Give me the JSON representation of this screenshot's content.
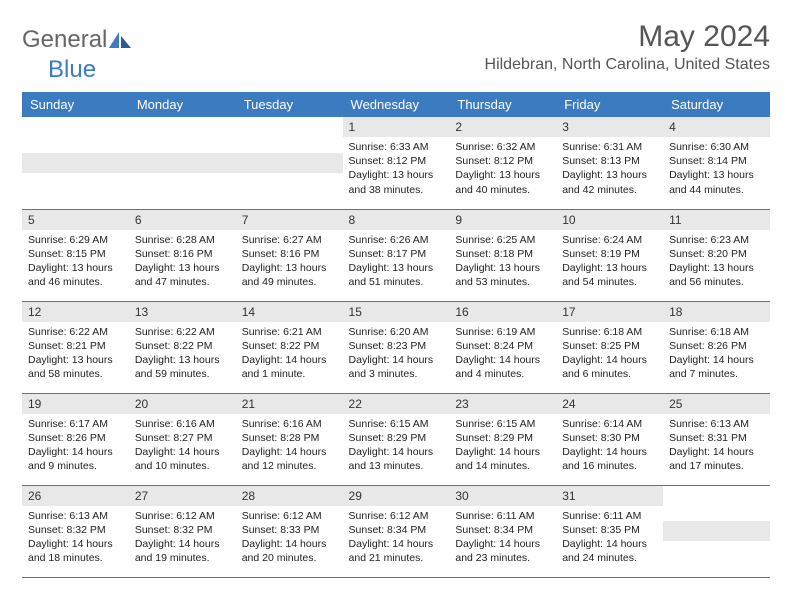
{
  "logo": {
    "part1": "General",
    "part2": "Blue"
  },
  "title": "May 2024",
  "location": "Hildebran, North Carolina, United States",
  "colors": {
    "header_bg": "#3b7bbf",
    "header_text": "#ffffff",
    "daynum_bg": "#e8e8e8",
    "border": "#3b7bbf",
    "logo_gray": "#666666",
    "logo_blue": "#3b7bbf"
  },
  "days_of_week": [
    "Sunday",
    "Monday",
    "Tuesday",
    "Wednesday",
    "Thursday",
    "Friday",
    "Saturday"
  ],
  "weeks": [
    [
      null,
      null,
      null,
      {
        "n": "1",
        "sr": "6:33 AM",
        "ss": "8:12 PM",
        "dl": "13 hours and 38 minutes."
      },
      {
        "n": "2",
        "sr": "6:32 AM",
        "ss": "8:12 PM",
        "dl": "13 hours and 40 minutes."
      },
      {
        "n": "3",
        "sr": "6:31 AM",
        "ss": "8:13 PM",
        "dl": "13 hours and 42 minutes."
      },
      {
        "n": "4",
        "sr": "6:30 AM",
        "ss": "8:14 PM",
        "dl": "13 hours and 44 minutes."
      }
    ],
    [
      {
        "n": "5",
        "sr": "6:29 AM",
        "ss": "8:15 PM",
        "dl": "13 hours and 46 minutes."
      },
      {
        "n": "6",
        "sr": "6:28 AM",
        "ss": "8:16 PM",
        "dl": "13 hours and 47 minutes."
      },
      {
        "n": "7",
        "sr": "6:27 AM",
        "ss": "8:16 PM",
        "dl": "13 hours and 49 minutes."
      },
      {
        "n": "8",
        "sr": "6:26 AM",
        "ss": "8:17 PM",
        "dl": "13 hours and 51 minutes."
      },
      {
        "n": "9",
        "sr": "6:25 AM",
        "ss": "8:18 PM",
        "dl": "13 hours and 53 minutes."
      },
      {
        "n": "10",
        "sr": "6:24 AM",
        "ss": "8:19 PM",
        "dl": "13 hours and 54 minutes."
      },
      {
        "n": "11",
        "sr": "6:23 AM",
        "ss": "8:20 PM",
        "dl": "13 hours and 56 minutes."
      }
    ],
    [
      {
        "n": "12",
        "sr": "6:22 AM",
        "ss": "8:21 PM",
        "dl": "13 hours and 58 minutes."
      },
      {
        "n": "13",
        "sr": "6:22 AM",
        "ss": "8:22 PM",
        "dl": "13 hours and 59 minutes."
      },
      {
        "n": "14",
        "sr": "6:21 AM",
        "ss": "8:22 PM",
        "dl": "14 hours and 1 minute."
      },
      {
        "n": "15",
        "sr": "6:20 AM",
        "ss": "8:23 PM",
        "dl": "14 hours and 3 minutes."
      },
      {
        "n": "16",
        "sr": "6:19 AM",
        "ss": "8:24 PM",
        "dl": "14 hours and 4 minutes."
      },
      {
        "n": "17",
        "sr": "6:18 AM",
        "ss": "8:25 PM",
        "dl": "14 hours and 6 minutes."
      },
      {
        "n": "18",
        "sr": "6:18 AM",
        "ss": "8:26 PM",
        "dl": "14 hours and 7 minutes."
      }
    ],
    [
      {
        "n": "19",
        "sr": "6:17 AM",
        "ss": "8:26 PM",
        "dl": "14 hours and 9 minutes."
      },
      {
        "n": "20",
        "sr": "6:16 AM",
        "ss": "8:27 PM",
        "dl": "14 hours and 10 minutes."
      },
      {
        "n": "21",
        "sr": "6:16 AM",
        "ss": "8:28 PM",
        "dl": "14 hours and 12 minutes."
      },
      {
        "n": "22",
        "sr": "6:15 AM",
        "ss": "8:29 PM",
        "dl": "14 hours and 13 minutes."
      },
      {
        "n": "23",
        "sr": "6:15 AM",
        "ss": "8:29 PM",
        "dl": "14 hours and 14 minutes."
      },
      {
        "n": "24",
        "sr": "6:14 AM",
        "ss": "8:30 PM",
        "dl": "14 hours and 16 minutes."
      },
      {
        "n": "25",
        "sr": "6:13 AM",
        "ss": "8:31 PM",
        "dl": "14 hours and 17 minutes."
      }
    ],
    [
      {
        "n": "26",
        "sr": "6:13 AM",
        "ss": "8:32 PM",
        "dl": "14 hours and 18 minutes."
      },
      {
        "n": "27",
        "sr": "6:12 AM",
        "ss": "8:32 PM",
        "dl": "14 hours and 19 minutes."
      },
      {
        "n": "28",
        "sr": "6:12 AM",
        "ss": "8:33 PM",
        "dl": "14 hours and 20 minutes."
      },
      {
        "n": "29",
        "sr": "6:12 AM",
        "ss": "8:34 PM",
        "dl": "14 hours and 21 minutes."
      },
      {
        "n": "30",
        "sr": "6:11 AM",
        "ss": "8:34 PM",
        "dl": "14 hours and 23 minutes."
      },
      {
        "n": "31",
        "sr": "6:11 AM",
        "ss": "8:35 PM",
        "dl": "14 hours and 24 minutes."
      },
      null
    ]
  ],
  "labels": {
    "sunrise": "Sunrise:",
    "sunset": "Sunset:",
    "daylight": "Daylight:"
  }
}
